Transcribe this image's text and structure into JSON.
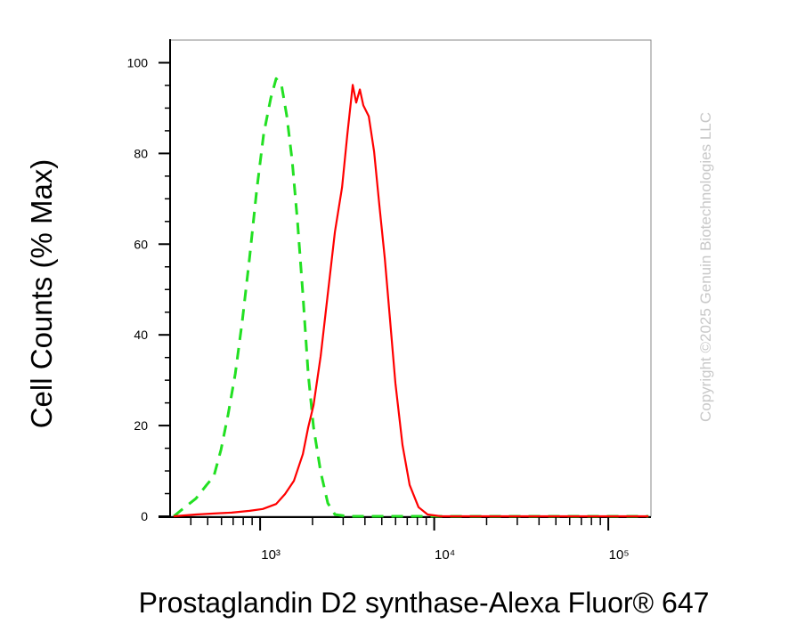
{
  "chart_data": {
    "type": "line",
    "xlabel": "Prostaglandin D2 synthase-Alexa Fluor® 647",
    "ylabel": "Cell Counts (% Max)",
    "watermark": "Copyright ©2025 Genuin Biotechnologies LLC",
    "xscale": "log",
    "xlim": [
      304,
      175800
    ],
    "ylim": [
      0,
      105
    ],
    "xticks": [
      {
        "value": 1000,
        "label": "10³"
      },
      {
        "value": 10000,
        "label": "10⁴"
      },
      {
        "value": 100000,
        "label": "10⁵"
      }
    ],
    "xminorticks": [
      400,
      500,
      600,
      700,
      800,
      900,
      2000,
      3000,
      4000,
      5000,
      6000,
      7000,
      8000,
      9000,
      20000,
      30000,
      40000,
      50000,
      60000,
      70000,
      80000,
      90000
    ],
    "yticks": [
      0,
      20,
      40,
      60,
      80,
      100
    ],
    "yminorticks": [
      5,
      10,
      15,
      25,
      30,
      35,
      45,
      50,
      55,
      65,
      70,
      75,
      85,
      90,
      95
    ],
    "series": [
      {
        "color": "#22e022",
        "dash": true,
        "x": [
          319,
          359,
          428,
          493,
          542,
          596,
          655,
          720,
          790,
          869,
          954,
          1048,
          1152,
          1236,
          1327,
          1424,
          1528,
          1641,
          1761,
          1890,
          2028,
          2228,
          2448,
          2690,
          3170,
          170000
        ],
        "values": [
          0,
          1.6,
          3.9,
          6.9,
          8.8,
          14.7,
          22.5,
          31.4,
          43.1,
          56.9,
          71.6,
          84.3,
          92.2,
          96.5,
          95.1,
          88.2,
          78.4,
          64.7,
          49,
          31.4,
          19.6,
          9.8,
          2.9,
          0.4,
          0,
          0
        ]
      },
      {
        "color": "#ff0000",
        "dash": false,
        "x": [
          319,
          428,
          542,
          686,
          869,
          1036,
          1236,
          1390,
          1563,
          1761,
          1890,
          2028,
          2228,
          2448,
          2690,
          2957,
          3170,
          3404,
          3565,
          3739,
          3917,
          4207,
          4517,
          4842,
          5200,
          5585,
          5984,
          6577,
          7228,
          8128,
          9162,
          10920,
          170000
        ],
        "values": [
          0,
          0.4,
          0.6,
          0.8,
          1.2,
          1.6,
          2.7,
          4.9,
          7.8,
          13.7,
          19.6,
          24.5,
          35.3,
          49,
          62.7,
          72.5,
          84.3,
          95.1,
          91.2,
          94.1,
          90.6,
          88.2,
          80.4,
          68.6,
          56.9,
          43.1,
          29.4,
          15.7,
          6.9,
          2,
          0.4,
          0,
          0
        ]
      }
    ]
  }
}
